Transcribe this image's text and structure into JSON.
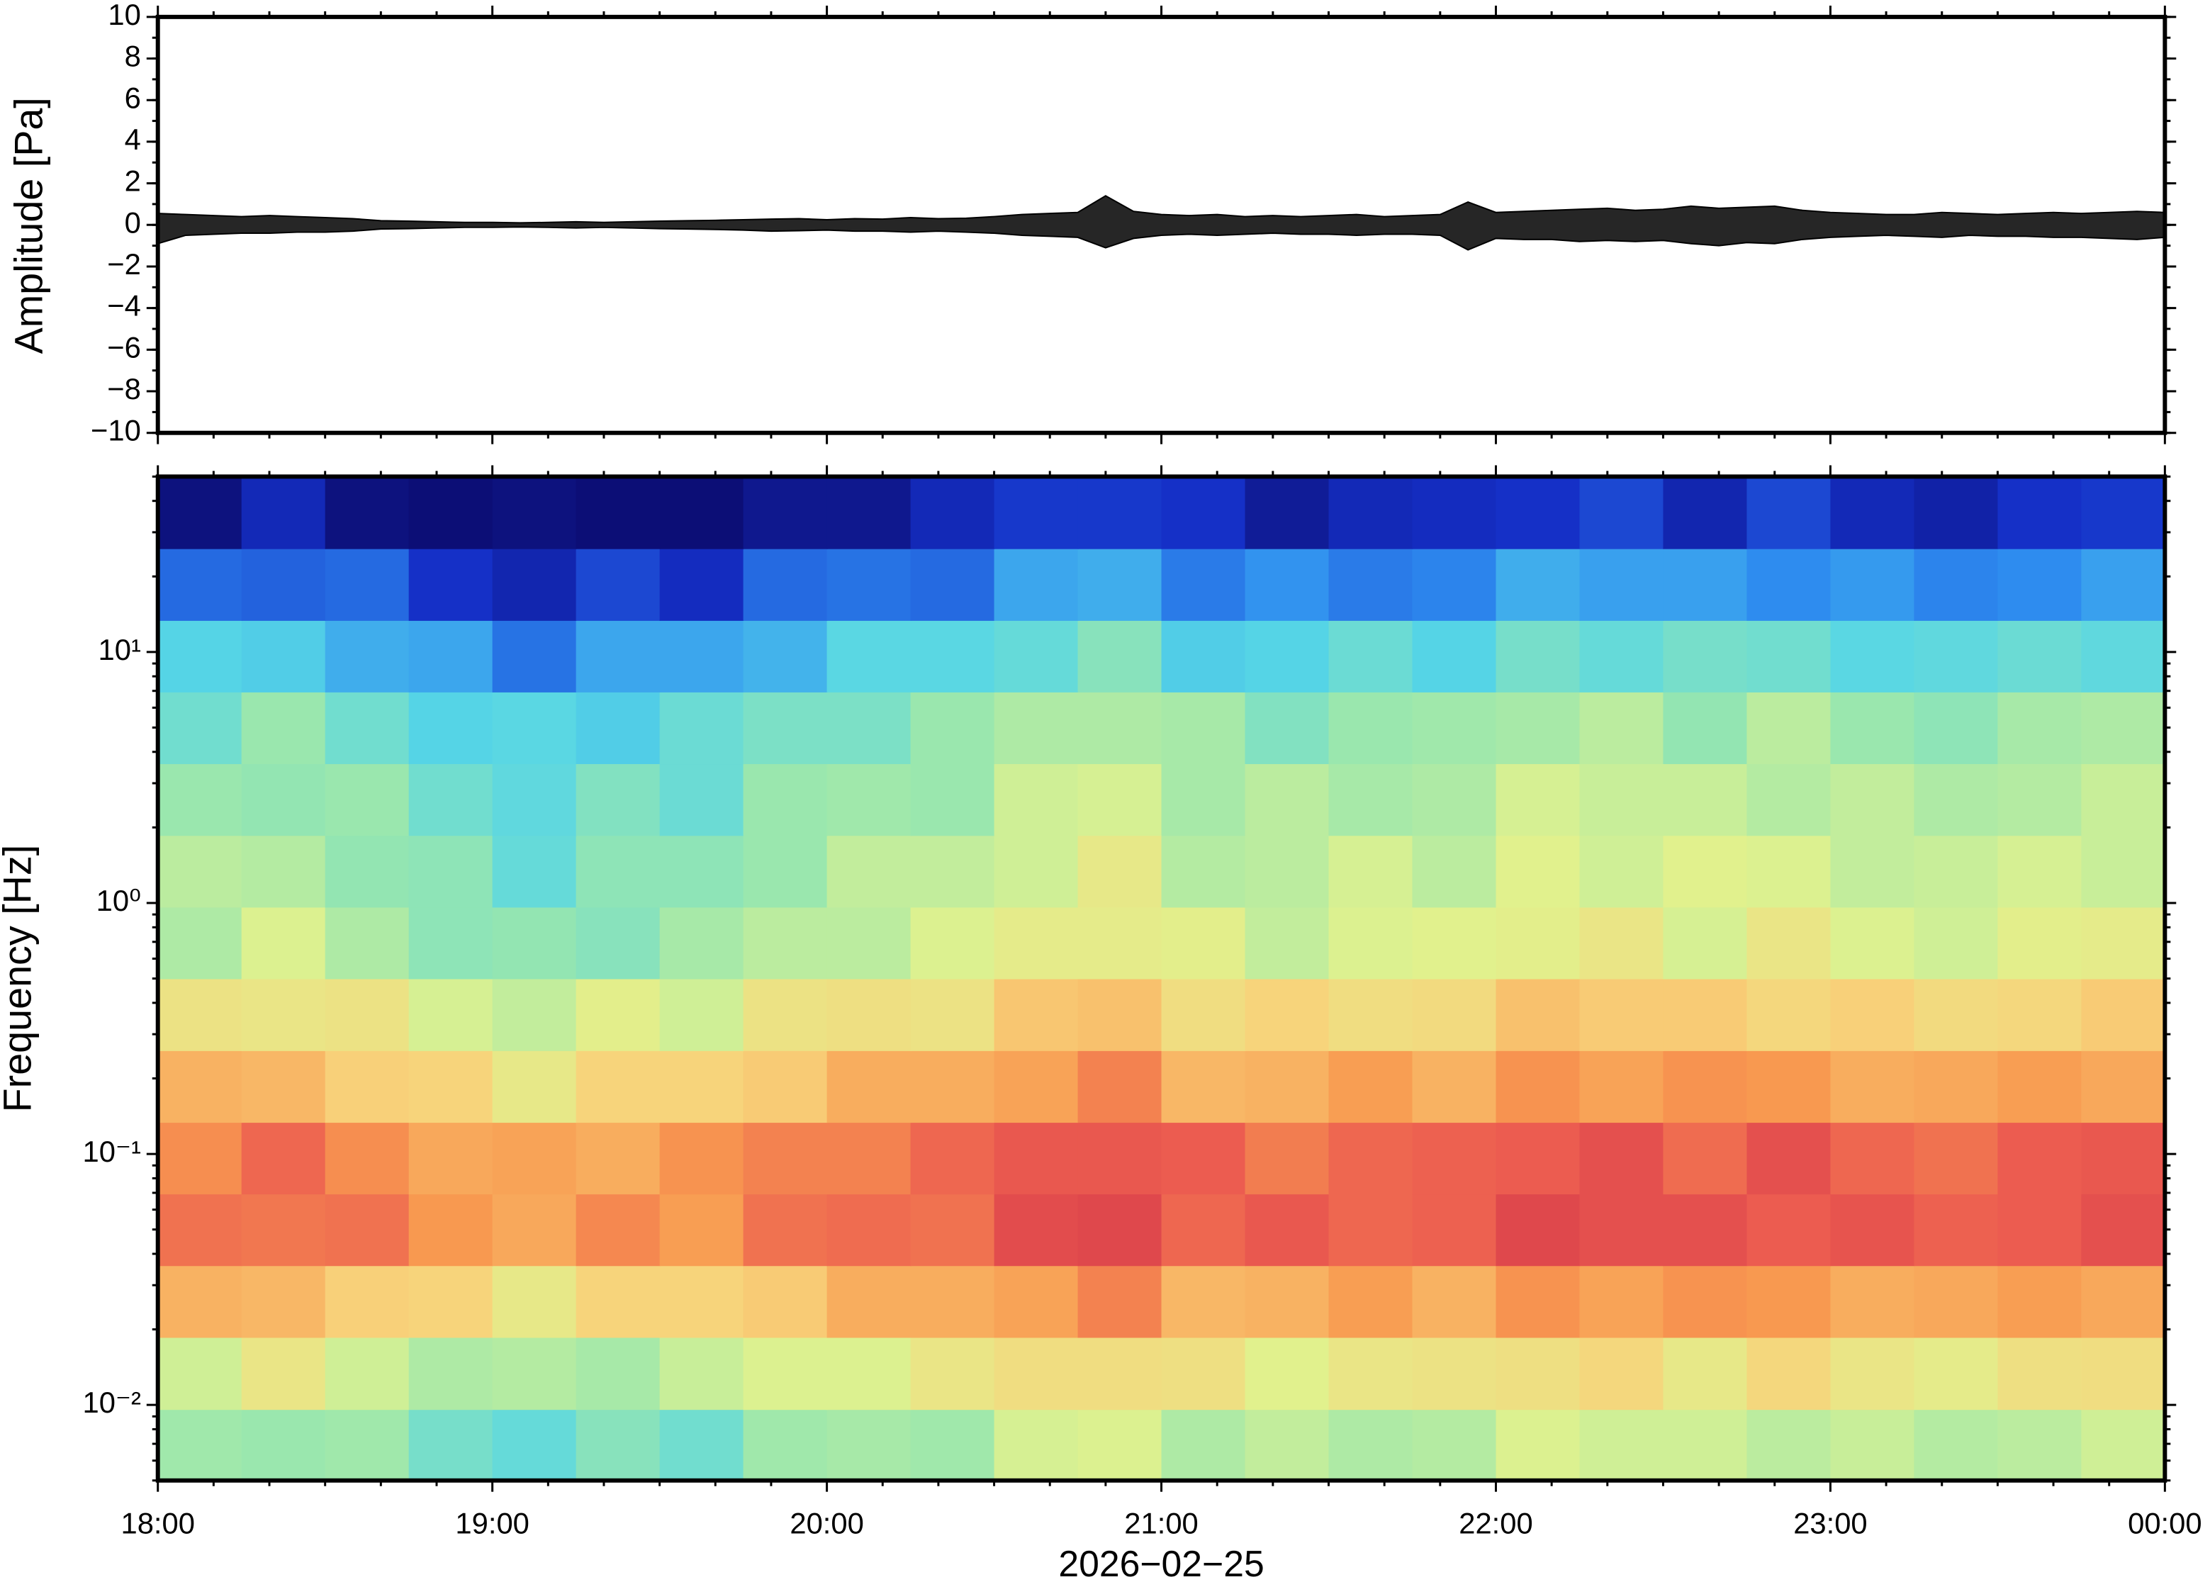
{
  "chart_data": [
    {
      "type": "line",
      "ylabel": "Amplitude [Pa]",
      "x": [
        "18:00",
        "18:05",
        "18:10",
        "18:15",
        "18:20",
        "18:25",
        "18:30",
        "18:35",
        "18:40",
        "18:45",
        "18:50",
        "18:55",
        "19:00",
        "19:05",
        "19:10",
        "19:15",
        "19:20",
        "19:25",
        "19:30",
        "19:35",
        "19:40",
        "19:45",
        "19:50",
        "19:55",
        "20:00",
        "20:05",
        "20:10",
        "20:15",
        "20:20",
        "20:25",
        "20:30",
        "20:35",
        "20:40",
        "20:45",
        "20:50",
        "20:55",
        "21:00",
        "21:05",
        "21:10",
        "21:15",
        "21:20",
        "21:25",
        "21:30",
        "21:35",
        "21:40",
        "21:45",
        "21:50",
        "21:55",
        "22:00",
        "22:05",
        "22:10",
        "22:15",
        "22:20",
        "22:25",
        "22:30",
        "22:35",
        "22:40",
        "22:45",
        "22:50",
        "22:55",
        "23:00",
        "23:05",
        "23:10",
        "23:15",
        "23:20",
        "23:25",
        "23:30",
        "23:35",
        "23:40",
        "23:45",
        "23:50",
        "23:55",
        "00:00"
      ],
      "series": [
        {
          "color": "#000000",
          "values": [
            0.55,
            0.5,
            0.45,
            0.4,
            0.45,
            0.4,
            0.35,
            0.3,
            0.2,
            0.18,
            0.15,
            0.12,
            0.12,
            0.1,
            0.12,
            0.15,
            0.12,
            0.15,
            0.18,
            0.2,
            0.22,
            0.25,
            0.28,
            0.3,
            0.25,
            0.3,
            0.28,
            0.35,
            0.3,
            0.32,
            0.4,
            0.5,
            0.55,
            0.6,
            1.4,
            0.65,
            0.5,
            0.45,
            0.5,
            0.4,
            0.45,
            0.4,
            0.45,
            0.5,
            0.4,
            0.45,
            0.5,
            1.1,
            0.6,
            0.65,
            0.7,
            0.75,
            0.8,
            0.7,
            0.75,
            0.9,
            0.8,
            0.85,
            0.9,
            0.7,
            0.6,
            0.55,
            0.5,
            0.5,
            0.6,
            0.55,
            0.5,
            0.55,
            0.6,
            0.55,
            0.6,
            0.65,
            0.6
          ]
        },
        {
          "color": "#000000",
          "values": [
            -0.9,
            -0.5,
            -0.45,
            -0.4,
            -0.4,
            -0.35,
            -0.35,
            -0.3,
            -0.2,
            -0.18,
            -0.15,
            -0.12,
            -0.12,
            -0.1,
            -0.12,
            -0.15,
            -0.12,
            -0.15,
            -0.18,
            -0.2,
            -0.22,
            -0.25,
            -0.3,
            -0.28,
            -0.25,
            -0.3,
            -0.3,
            -0.35,
            -0.3,
            -0.35,
            -0.4,
            -0.5,
            -0.55,
            -0.6,
            -1.1,
            -0.65,
            -0.5,
            -0.45,
            -0.5,
            -0.45,
            -0.4,
            -0.45,
            -0.45,
            -0.5,
            -0.45,
            -0.45,
            -0.5,
            -1.2,
            -0.65,
            -0.7,
            -0.7,
            -0.8,
            -0.75,
            -0.8,
            -0.75,
            -0.9,
            -1.0,
            -0.85,
            -0.9,
            -0.7,
            -0.6,
            -0.55,
            -0.5,
            -0.55,
            -0.6,
            -0.5,
            -0.55,
            -0.55,
            -0.6,
            -0.6,
            -0.65,
            -0.7,
            -0.6
          ]
        }
      ],
      "ylim": [
        -10,
        10
      ],
      "yticks": [
        {
          "value": -10,
          "label": "−10"
        },
        {
          "value": -8,
          "label": "−8"
        },
        {
          "value": -6,
          "label": "−6"
        },
        {
          "value": -4,
          "label": "−4"
        },
        {
          "value": -2,
          "label": "−2"
        },
        0,
        2,
        4,
        6,
        8,
        10
      ]
    },
    {
      "type": "heatmap",
      "ylabel": "Frequency [Hz]",
      "xlabel": "2026−02−25",
      "x": [
        "18:00",
        "18:15",
        "18:30",
        "18:45",
        "19:00",
        "19:15",
        "19:30",
        "19:45",
        "20:00",
        "20:15",
        "20:30",
        "20:45",
        "21:00",
        "21:15",
        "21:30",
        "21:45",
        "22:00",
        "22:15",
        "22:30",
        "22:45",
        "23:00",
        "23:15",
        "23:30",
        "23:45"
      ],
      "y": [
        0.0069,
        0.0134,
        0.0259,
        0.05,
        0.0965,
        0.186,
        0.36,
        0.695,
        1.34,
        2.59,
        5,
        9.65,
        18.6,
        36
      ],
      "values": [
        [
          0.46,
          0.45,
          0.46,
          0.39,
          0.36,
          0.42,
          0.38,
          0.46,
          0.47,
          0.46,
          0.54,
          0.55,
          0.48,
          0.51,
          0.48,
          0.49,
          0.55,
          0.53,
          0.53,
          0.5,
          0.52,
          0.49,
          0.5,
          0.53
        ],
        [
          0.53,
          0.6,
          0.53,
          0.48,
          0.49,
          0.47,
          0.52,
          0.55,
          0.55,
          0.6,
          0.63,
          0.63,
          0.62,
          0.56,
          0.6,
          0.61,
          0.62,
          0.65,
          0.59,
          0.65,
          0.6,
          0.58,
          0.62,
          0.63
        ],
        [
          0.73,
          0.72,
          0.67,
          0.66,
          0.59,
          0.66,
          0.66,
          0.68,
          0.74,
          0.74,
          0.76,
          0.82,
          0.72,
          0.73,
          0.77,
          0.73,
          0.79,
          0.76,
          0.79,
          0.78,
          0.74,
          0.75,
          0.77,
          0.75
        ],
        [
          0.85,
          0.84,
          0.85,
          0.78,
          0.75,
          0.81,
          0.77,
          0.85,
          0.86,
          0.85,
          0.93,
          0.94,
          0.87,
          0.9,
          0.87,
          0.88,
          0.94,
          0.92,
          0.92,
          0.89,
          0.91,
          0.88,
          0.89,
          0.92
        ],
        [
          0.8,
          0.87,
          0.8,
          0.75,
          0.76,
          0.74,
          0.79,
          0.82,
          0.82,
          0.87,
          0.9,
          0.9,
          0.89,
          0.83,
          0.87,
          0.88,
          0.89,
          0.92,
          0.86,
          0.92,
          0.87,
          0.85,
          0.89,
          0.9
        ],
        [
          0.73,
          0.72,
          0.67,
          0.66,
          0.59,
          0.66,
          0.66,
          0.68,
          0.74,
          0.74,
          0.76,
          0.82,
          0.72,
          0.73,
          0.77,
          0.73,
          0.79,
          0.76,
          0.79,
          0.78,
          0.74,
          0.75,
          0.77,
          0.75
        ],
        [
          0.61,
          0.6,
          0.61,
          0.54,
          0.51,
          0.57,
          0.53,
          0.61,
          0.62,
          0.61,
          0.69,
          0.7,
          0.63,
          0.66,
          0.63,
          0.64,
          0.7,
          0.68,
          0.68,
          0.65,
          0.67,
          0.64,
          0.65,
          0.68
        ],
        [
          0.48,
          0.55,
          0.48,
          0.43,
          0.44,
          0.42,
          0.47,
          0.5,
          0.5,
          0.55,
          0.58,
          0.58,
          0.57,
          0.51,
          0.55,
          0.56,
          0.57,
          0.6,
          0.54,
          0.6,
          0.55,
          0.53,
          0.57,
          0.58
        ],
        [
          0.5,
          0.49,
          0.44,
          0.43,
          0.36,
          0.43,
          0.43,
          0.45,
          0.51,
          0.51,
          0.53,
          0.59,
          0.49,
          0.5,
          0.54,
          0.5,
          0.56,
          0.53,
          0.56,
          0.55,
          0.51,
          0.52,
          0.54,
          0.52
        ],
        [
          0.45,
          0.44,
          0.45,
          0.38,
          0.35,
          0.41,
          0.37,
          0.45,
          0.46,
          0.45,
          0.53,
          0.54,
          0.47,
          0.5,
          0.47,
          0.48,
          0.54,
          0.52,
          0.52,
          0.49,
          0.51,
          0.48,
          0.49,
          0.52
        ],
        [
          0.38,
          0.45,
          0.38,
          0.33,
          0.34,
          0.32,
          0.37,
          0.4,
          0.4,
          0.45,
          0.48,
          0.48,
          0.47,
          0.41,
          0.45,
          0.46,
          0.47,
          0.5,
          0.44,
          0.5,
          0.45,
          0.43,
          0.47,
          0.48
        ],
        [
          0.33,
          0.32,
          0.27,
          0.26,
          0.19,
          0.26,
          0.26,
          0.28,
          0.34,
          0.34,
          0.36,
          0.42,
          0.32,
          0.33,
          0.37,
          0.33,
          0.39,
          0.36,
          0.39,
          0.38,
          0.34,
          0.35,
          0.37,
          0.35
        ],
        [
          0.18,
          0.17,
          0.18,
          0.11,
          0.08,
          0.14,
          0.1,
          0.18,
          0.19,
          0.18,
          0.26,
          0.27,
          0.2,
          0.23,
          0.2,
          0.21,
          0.27,
          0.25,
          0.25,
          0.22,
          0.24,
          0.21,
          0.22,
          0.25
        ],
        [
          0.02,
          0.09,
          0.02,
          0.01,
          0.02,
          0.01,
          0.01,
          0.04,
          0.04,
          0.09,
          0.12,
          0.12,
          0.11,
          0.05,
          0.09,
          0.1,
          0.11,
          0.14,
          0.08,
          0.14,
          0.09,
          0.07,
          0.11,
          0.12
        ]
      ],
      "zlim": [
        0,
        1
      ],
      "colormap": [
        "#0b0b6e",
        "#1530c8",
        "#2f8ef0",
        "#56d6e6",
        "#96e6b0",
        "#e0f28e",
        "#f8d27a",
        "#f89a50",
        "#ec5c50",
        "#d03048"
      ],
      "log_y": true,
      "ylim": [
        0.005,
        50
      ],
      "yticks": [
        {
          "value": 0.01,
          "label": "10⁻²"
        },
        {
          "value": 0.1,
          "label": "10⁻¹"
        },
        {
          "value": 1,
          "label": "10⁰"
        },
        {
          "value": 10,
          "label": "10¹"
        }
      ],
      "xlim": [
        "18:00",
        "00:00"
      ],
      "xticks": [
        "18:00",
        "19:00",
        "20:00",
        "21:00",
        "22:00",
        "23:00",
        "00:00"
      ]
    }
  ]
}
